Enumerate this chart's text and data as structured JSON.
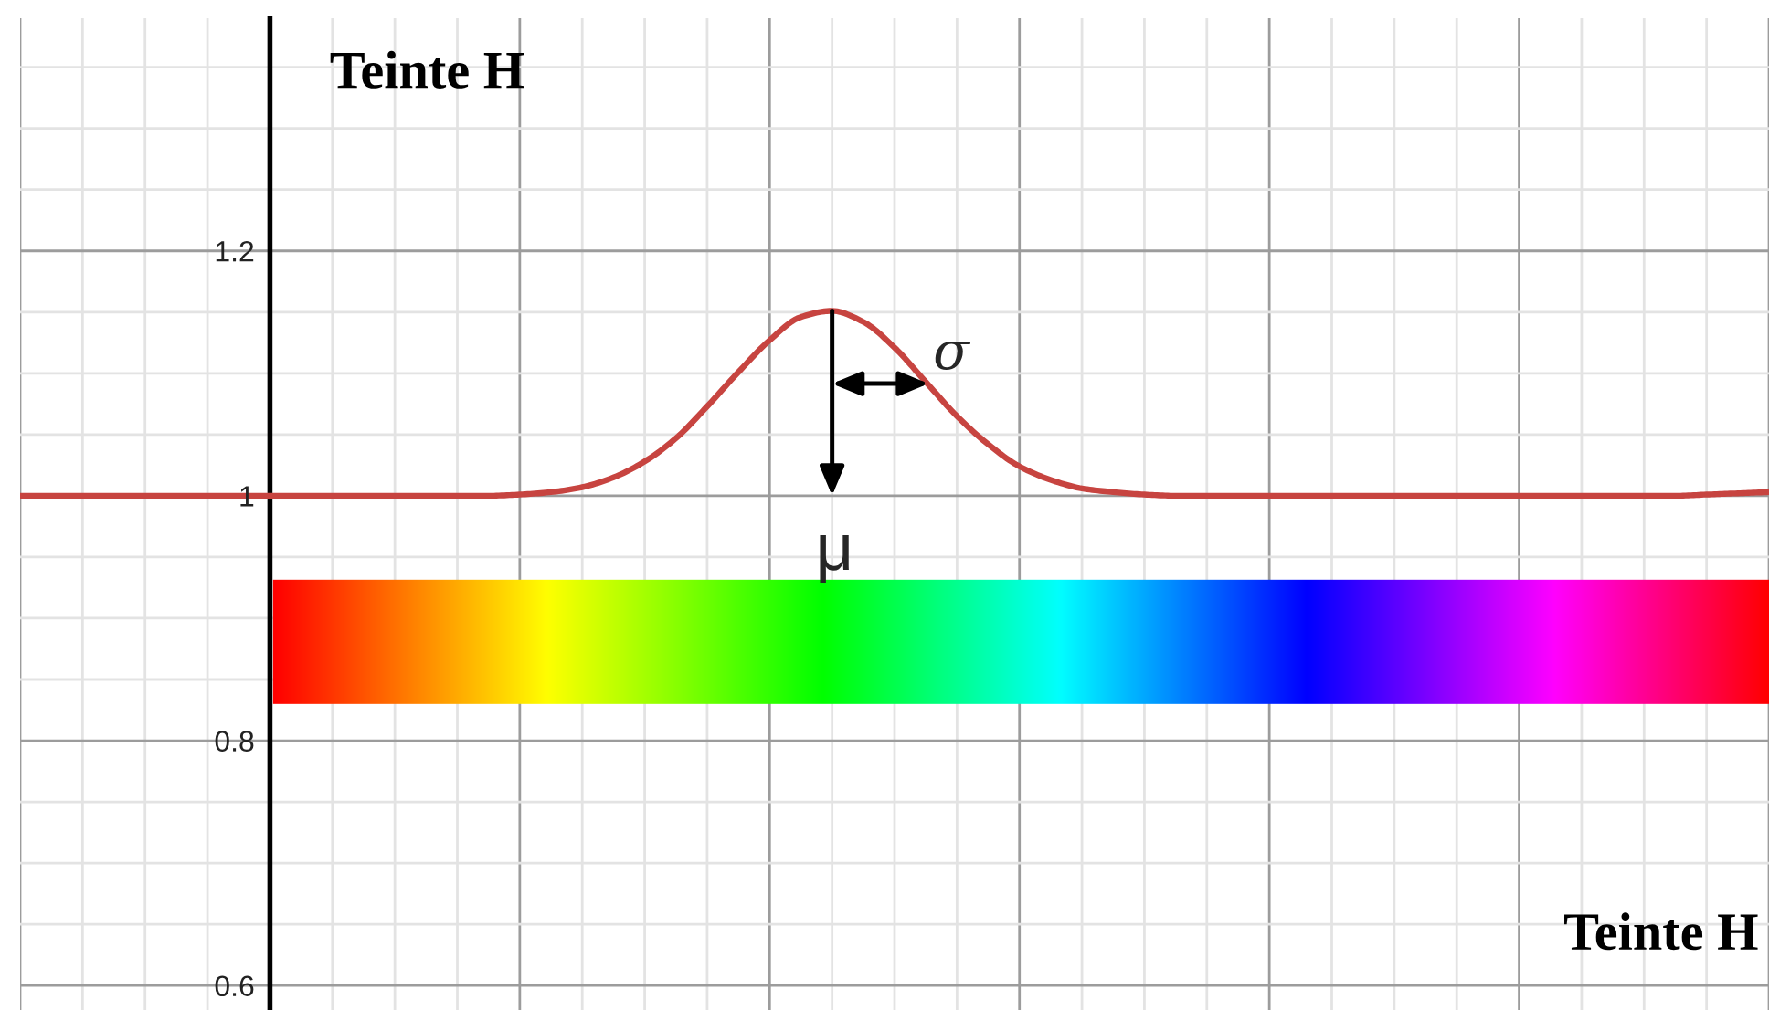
{
  "chart_data": {
    "type": "line",
    "xlabel": "Teinte H",
    "ylabel": "Teinte H",
    "categories": [
      null,
      null,
      null,
      null,
      null,
      null,
      null,
      null,
      null,
      null,
      null,
      null,
      null,
      null,
      null,
      null,
      null,
      null,
      null,
      null,
      null,
      null,
      null,
      null,
      null,
      null,
      null,
      null,
      null,
      null,
      null,
      null,
      null,
      null,
      null,
      null,
      null,
      null,
      null,
      null,
      null,
      null,
      null,
      null,
      null,
      null,
      null,
      null,
      null,
      null,
      null,
      null,
      null,
      null,
      null,
      null,
      null
    ],
    "series": [
      {
        "color": "#c74440",
        "values": [
          1.0,
          1.0,
          1.0,
          1.0,
          1.0,
          1.0,
          1.0,
          1.0,
          1.0,
          1.0,
          1.0,
          1.0,
          1.0,
          1.0,
          1.0,
          1.0,
          1.001,
          1.003,
          1.007,
          1.015,
          1.028,
          1.047,
          1.073,
          1.101,
          1.127,
          1.146,
          1.151,
          1.142,
          1.121,
          1.093,
          1.065,
          1.042,
          1.024,
          1.013,
          1.006,
          1.003,
          1.001,
          1.0,
          1.0,
          1.0,
          1.0,
          1.0,
          1.0,
          1.0,
          1.0,
          1.0,
          1.0,
          1.0,
          1.0,
          1.0,
          1.0,
          1.0,
          1.0,
          1.0,
          1.001,
          1.002,
          1.003
        ]
      }
    ],
    "ylim": [
      0.58,
      1.39
    ],
    "yticks": [
      0.6,
      0.8,
      1,
      1.2
    ],
    "grid": true,
    "tick_labels": "y",
    "annotations": [
      "μ",
      "σ"
    ]
  }
}
